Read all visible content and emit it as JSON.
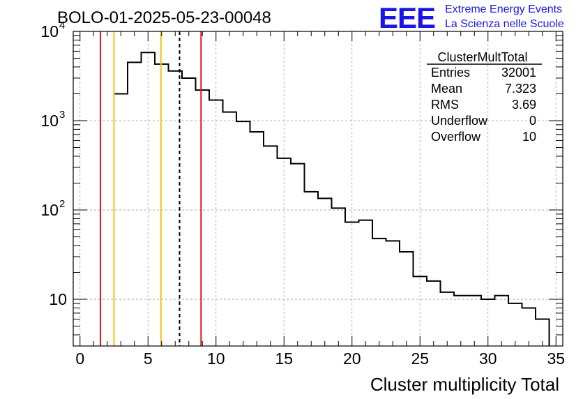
{
  "chart_data": {
    "type": "bar",
    "title": "BOLO-01-2025-05-23-00048",
    "xlabel": "Cluster multiplicity Total",
    "ylabel": "",
    "y_scale": "log",
    "xlim": [
      -0.5,
      35.5
    ],
    "ylim": [
      3,
      10000
    ],
    "x_ticks": [
      "0",
      "5",
      "10",
      "15",
      "20",
      "25",
      "30",
      "35"
    ],
    "y_ticks": [
      {
        "value": 10,
        "base": "10",
        "exp": ""
      },
      {
        "value": 100,
        "base": "10",
        "exp": "2"
      },
      {
        "value": 1000,
        "base": "10",
        "exp": "3"
      },
      {
        "value": 10000,
        "base": "10",
        "exp": "4"
      }
    ],
    "grid": true,
    "bin_edges": [
      2.5,
      3.5,
      4.5,
      5.5,
      6.5,
      7.5,
      8.5,
      9.5,
      10.5,
      11.5,
      12.5,
      13.5,
      14.5,
      15.5,
      16.5,
      17.5,
      18.5,
      19.5,
      20.5,
      21.5,
      22.5,
      23.5,
      24.5,
      25.5,
      26.5,
      27.5,
      28.5,
      29.5,
      30.5,
      31.5,
      32.5,
      33.5,
      34.5
    ],
    "values": [
      2000,
      4500,
      5800,
      4300,
      3600,
      3000,
      2200,
      1700,
      1250,
      980,
      750,
      520,
      380,
      330,
      160,
      135,
      105,
      73,
      77,
      48,
      45,
      34,
      18,
      16,
      12,
      11,
      11,
      10,
      11,
      9,
      8,
      6
    ],
    "vertical_lines": [
      {
        "x": 1.5,
        "color": "#e8121b",
        "style": "solid"
      },
      {
        "x": 2.5,
        "color": "#f2c40c",
        "style": "solid"
      },
      {
        "x": 5.95,
        "color": "#f2c40c",
        "style": "solid"
      },
      {
        "x": 7.32,
        "color": "#000000",
        "style": "dashed"
      },
      {
        "x": 8.9,
        "color": "#e8121b",
        "style": "solid"
      }
    ],
    "stats": {
      "name": "ClusterMultTotal",
      "rows": [
        {
          "label": "Entries",
          "value": "32001"
        },
        {
          "label": "Mean",
          "value": "7.323"
        },
        {
          "label": "RMS",
          "value": "3.69"
        },
        {
          "label": "Underflow",
          "value": "0"
        },
        {
          "label": "Overflow",
          "value": "10"
        }
      ]
    }
  },
  "logo": {
    "mark": "EEE",
    "line1": "Extreme Energy Events",
    "line2": "La Scienza nelle Scuole",
    "color": "#1a14e6"
  }
}
